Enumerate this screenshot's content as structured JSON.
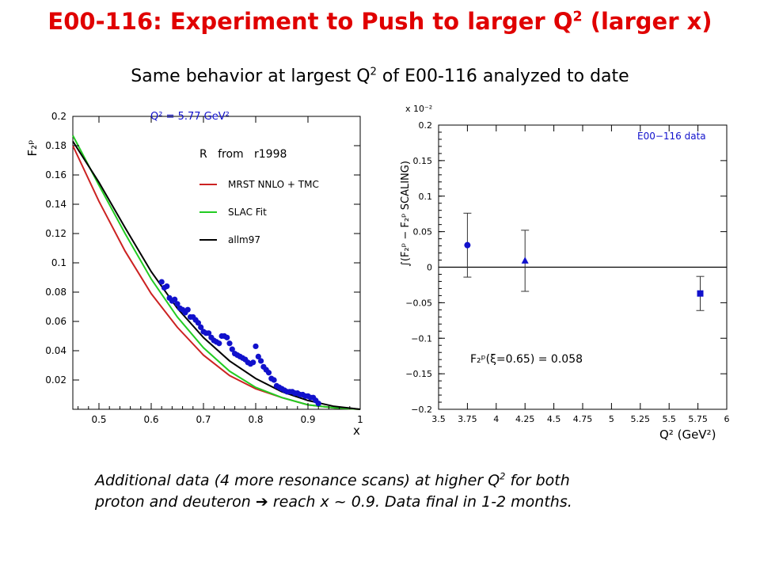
{
  "slide": {
    "title_main": "E00-116: Experiment to Push to larger Q",
    "title_sup": "2",
    "title_end": " (larger x)",
    "subtitle_main": "Same behavior at largest Q",
    "subtitle_sup": "2",
    "subtitle_end": " of E00-116 analyzed to date",
    "caption_line1_main": "Additional data (4 more resonance scans) at higher Q",
    "caption_line1_sup": "2",
    "caption_line1_end": " for both",
    "caption_line2": "proton and deuteron ➔ reach x ~ 0.9. Data final in 1-2 months."
  },
  "colors": {
    "title": "#e00000",
    "mrst": "#cc2222",
    "slac": "#22cc22",
    "allm": "#000000",
    "data": "#1111cc",
    "plot_text": "#1111cc"
  },
  "chart_data": [
    {
      "type": "line",
      "title": "Q² = 5.77 GeV²",
      "xlabel": "x",
      "ylabel": "F₂ᵖ",
      "xlim": [
        0.45,
        1.0
      ],
      "ylim": [
        0.0,
        0.2
      ],
      "xticks": [
        0.5,
        0.6,
        0.7,
        0.8,
        0.9,
        1.0
      ],
      "xtick_labels": [
        "0.5",
        "0.6",
        "0.7",
        "0.8",
        "0.9",
        "1"
      ],
      "yticks": [
        0.02,
        0.04,
        0.06,
        0.08,
        0.1,
        0.12,
        0.14,
        0.16,
        0.18,
        0.2
      ],
      "ytick_labels": [
        "0.02",
        "0.04",
        "0.06",
        "0.08",
        "0.1",
        "0.12",
        "0.14",
        "0.16",
        "0.18",
        "0.2"
      ],
      "annotation": "R   from   r1998",
      "legend_position": "top-right",
      "series": [
        {
          "name": "MRST NNLO + TMC",
          "color": "#cc2222",
          "x": [
            0.45,
            0.5,
            0.55,
            0.6,
            0.65,
            0.7,
            0.75,
            0.8,
            0.85,
            0.9,
            0.95,
            1.0
          ],
          "y": [
            0.18,
            0.142,
            0.108,
            0.079,
            0.056,
            0.037,
            0.023,
            0.014,
            0.008,
            0.003,
            0.001,
            0.0
          ]
        },
        {
          "name": "SLAC Fit",
          "color": "#22cc22",
          "x": [
            0.45,
            0.5,
            0.55,
            0.6,
            0.65,
            0.7,
            0.75,
            0.8,
            0.85,
            0.9,
            0.95,
            1.0
          ],
          "y": [
            0.187,
            0.153,
            0.12,
            0.089,
            0.063,
            0.042,
            0.026,
            0.015,
            0.008,
            0.003,
            0.001,
            0.0
          ]
        },
        {
          "name": "allm97",
          "color": "#000000",
          "x": [
            0.45,
            0.5,
            0.55,
            0.6,
            0.65,
            0.7,
            0.75,
            0.8,
            0.85,
            0.9,
            0.95,
            1.0
          ],
          "y": [
            0.183,
            0.155,
            0.124,
            0.094,
            0.069,
            0.049,
            0.033,
            0.021,
            0.012,
            0.006,
            0.002,
            0.0
          ]
        },
        {
          "name": "data",
          "kind": "scatter",
          "color": "#1111cc",
          "x": [
            0.62,
            0.625,
            0.63,
            0.635,
            0.64,
            0.645,
            0.65,
            0.655,
            0.66,
            0.665,
            0.67,
            0.675,
            0.68,
            0.685,
            0.69,
            0.695,
            0.7,
            0.705,
            0.71,
            0.715,
            0.72,
            0.725,
            0.73,
            0.735,
            0.74,
            0.745,
            0.75,
            0.755,
            0.76,
            0.765,
            0.77,
            0.775,
            0.78,
            0.785,
            0.79,
            0.795,
            0.8,
            0.805,
            0.81,
            0.815,
            0.82,
            0.825,
            0.83,
            0.835,
            0.84,
            0.845,
            0.85,
            0.855,
            0.86,
            0.865,
            0.87,
            0.875,
            0.88,
            0.885,
            0.89,
            0.895,
            0.9,
            0.905,
            0.91,
            0.915,
            0.92
          ],
          "y": [
            0.087,
            0.083,
            0.084,
            0.076,
            0.074,
            0.075,
            0.072,
            0.069,
            0.068,
            0.066,
            0.068,
            0.063,
            0.063,
            0.061,
            0.059,
            0.056,
            0.053,
            0.052,
            0.052,
            0.049,
            0.047,
            0.046,
            0.045,
            0.05,
            0.05,
            0.049,
            0.045,
            0.041,
            0.038,
            0.037,
            0.036,
            0.035,
            0.034,
            0.032,
            0.031,
            0.032,
            0.043,
            0.036,
            0.033,
            0.029,
            0.027,
            0.025,
            0.021,
            0.02,
            0.016,
            0.015,
            0.014,
            0.013,
            0.012,
            0.012,
            0.012,
            0.011,
            0.011,
            0.01,
            0.01,
            0.009,
            0.009,
            0.008,
            0.008,
            0.006,
            0.004
          ]
        }
      ]
    },
    {
      "type": "scatter",
      "title": "",
      "xlabel": "Q² (GeV²)",
      "ylabel": "∫(F₂ᵖ − F₂ᵖ SCALING)",
      "y_scale_label": "x 10⁻²",
      "xlim": [
        3.5,
        6.0
      ],
      "ylim": [
        -0.2,
        0.2
      ],
      "xticks": [
        3.5,
        3.75,
        4.0,
        4.25,
        4.5,
        4.75,
        5.0,
        5.25,
        5.5,
        5.75,
        6.0
      ],
      "xtick_labels": [
        "3.5",
        "3.75",
        "4",
        "4.25",
        "4.5",
        "4.75",
        "5",
        "5.25",
        "5.5",
        "5.75",
        "6"
      ],
      "yticks": [
        -0.2,
        -0.15,
        -0.1,
        -0.05,
        0.0,
        0.05,
        0.1,
        0.15,
        0.2
      ],
      "ytick_labels": [
        "−0.2",
        "−0.15",
        "−0.1",
        "−0.05",
        "0",
        "0.05",
        "0.1",
        "0.15",
        "0.2"
      ],
      "legend": "E00−116 data",
      "annotation_main": "F₂ᵖ(ξ=0.65) = 0.058",
      "reference_line_y": 0.0,
      "points": [
        {
          "x": 3.75,
          "y": 0.031,
          "err": 0.045,
          "marker": "circle"
        },
        {
          "x": 4.25,
          "y": 0.009,
          "err": 0.043,
          "marker": "triangle"
        },
        {
          "x": 5.77,
          "y": -0.037,
          "err": 0.024,
          "marker": "square"
        }
      ]
    }
  ]
}
